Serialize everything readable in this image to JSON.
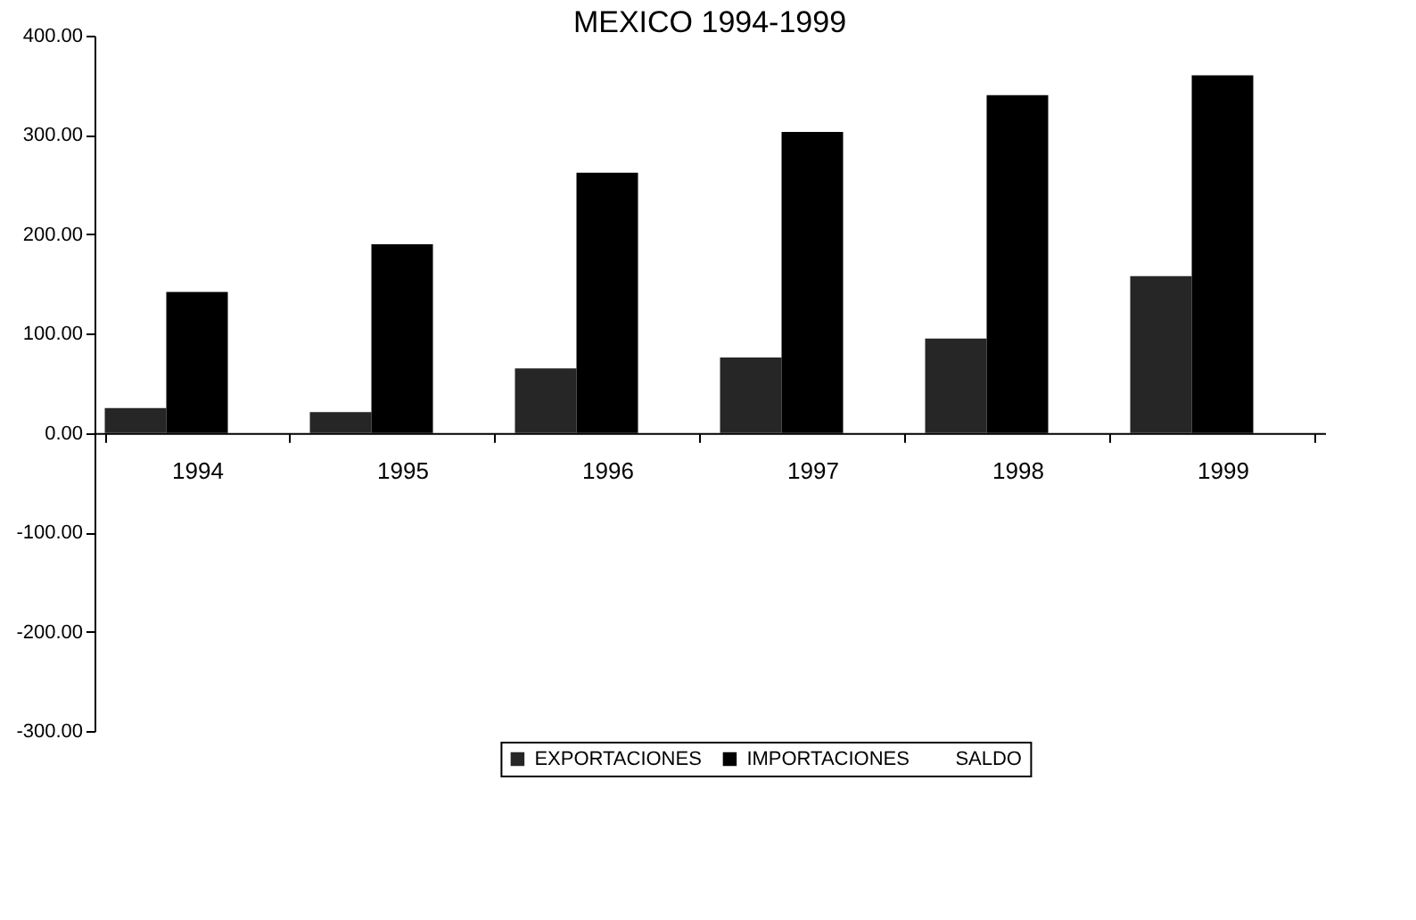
{
  "chart_data": {
    "type": "bar",
    "title": "MEXICO 1994-1999",
    "categories": [
      "1994",
      "1995",
      "1996",
      "1997",
      "1998",
      "1999"
    ],
    "series": [
      {
        "name": "EXPORTACIONES",
        "color": "#262626",
        "values": [
          25,
          21,
          65,
          76,
          95,
          158
        ]
      },
      {
        "name": "IMPORTACIONES",
        "color": "#000000",
        "values": [
          142,
          190,
          262,
          303,
          340,
          360
        ]
      },
      {
        "name": "SALDO",
        "values": [
          null,
          null,
          null,
          null,
          null,
          null
        ]
      }
    ],
    "ylim": [
      -300,
      400
    ],
    "yticks": [
      {
        "value": -300,
        "label": "-300.00"
      },
      {
        "value": -200,
        "label": "-200.00"
      },
      {
        "value": -100,
        "label": "-100.00"
      },
      {
        "value": 0,
        "label": "0.00"
      },
      {
        "value": 100,
        "label": "100.00"
      },
      {
        "value": 200,
        "label": "200.00"
      },
      {
        "value": 300,
        "label": "300.00"
      },
      {
        "value": 400,
        "label": "400.00"
      }
    ],
    "grid": false,
    "legend": "bottom"
  }
}
